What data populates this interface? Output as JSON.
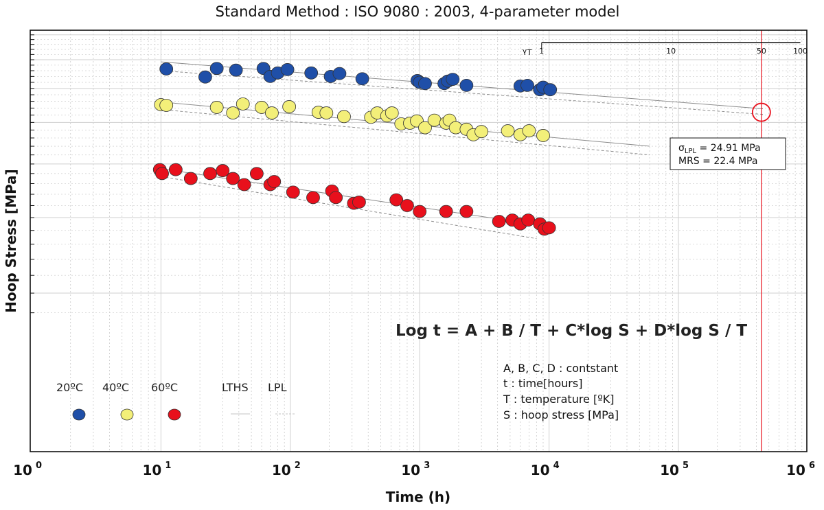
{
  "chart_data": {
    "type": "scatter",
    "title": "Standard Method : ISO 9080 :  2003, 4-parameter model",
    "xlabel": "Time (h)",
    "ylabel": "Hoop Stress [MPa]",
    "x_scale": "log",
    "xlim": [
      1,
      1000000
    ],
    "x_ticks": [
      {
        "value": 1,
        "base": "10",
        "exp": "0"
      },
      {
        "value": 10,
        "base": "10",
        "exp": "1"
      },
      {
        "value": 100,
        "base": "10",
        "exp": "2"
      },
      {
        "value": 1000,
        "base": "10",
        "exp": "3"
      },
      {
        "value": 10000,
        "base": "10",
        "exp": "4"
      },
      {
        "value": 100000,
        "base": "10",
        "exp": "5"
      },
      {
        "value": 1000000,
        "base": "10",
        "exp": "6"
      }
    ],
    "y_scale": "log",
    "ylim": [
      9,
      40
    ],
    "grid": true,
    "series": [
      {
        "name": "20°C",
        "color": "#1f4fa8",
        "x": [
          11,
          22,
          27,
          38,
          62,
          70,
          80,
          95,
          145,
          205,
          240,
          360,
          960,
          1000,
          1100,
          1550,
          1650,
          1800,
          2300,
          6000,
          6800,
          8500,
          9000,
          10200
        ],
        "y": [
          33.3,
          31.9,
          33.4,
          33.1,
          33.4,
          32.0,
          32.6,
          33.2,
          32.6,
          32.0,
          32.5,
          31.6,
          31.3,
          31.0,
          30.8,
          30.8,
          31.2,
          31.5,
          30.5,
          30.4,
          30.5,
          29.8,
          30.2,
          29.8
        ]
      },
      {
        "name": "40°C",
        "color": "#f3ef79",
        "x": [
          10,
          11,
          27,
          36,
          43,
          60,
          72,
          98,
          165,
          190,
          260,
          420,
          470,
          560,
          610,
          720,
          840,
          950,
          1100,
          1300,
          1600,
          1700,
          1900,
          2300,
          2600,
          3000,
          4800,
          6000,
          7000,
          9000
        ],
        "y": [
          27.5,
          27.4,
          27.1,
          26.3,
          27.6,
          27.1,
          26.3,
          27.2,
          26.4,
          26.3,
          25.8,
          25.7,
          26.3,
          25.9,
          26.3,
          24.8,
          24.9,
          25.2,
          24.3,
          25.3,
          24.9,
          25.3,
          24.3,
          24.1,
          23.4,
          23.8,
          23.9,
          23.4,
          23.9,
          23.3
        ]
      },
      {
        "name": "60°C",
        "color": "#e8101c",
        "x": [
          9.8,
          10.2,
          13,
          17,
          24,
          30,
          36,
          44,
          55,
          70,
          75,
          105,
          150,
          210,
          225,
          310,
          340,
          660,
          800,
          1000,
          1600,
          2300,
          4100,
          5200,
          6000,
          6900,
          8500,
          9200,
          10000
        ],
        "y": [
          19.4,
          19.0,
          19.4,
          18.5,
          19.0,
          19.3,
          18.5,
          17.9,
          19.0,
          17.9,
          18.2,
          17.2,
          16.7,
          17.3,
          16.7,
          16.2,
          16.3,
          16.5,
          16.0,
          15.5,
          15.5,
          15.5,
          14.7,
          14.8,
          14.5,
          14.8,
          14.5,
          14.1,
          14.2
        ]
      }
    ],
    "lines": [
      {
        "name": "LTHS",
        "series": "20°C",
        "x": [
          10,
          450000
        ],
        "y": [
          34.6,
          26.9
        ],
        "style": "solid",
        "color": "#8c8c8c"
      },
      {
        "name": "LPL",
        "series": "20°C",
        "x": [
          10,
          450000
        ],
        "y": [
          33.0,
          26.1
        ],
        "style": "dashed",
        "color": "#8c8c8c"
      },
      {
        "name": "LTHS",
        "series": "40°C",
        "x": [
          10,
          60000
        ],
        "y": [
          27.9,
          22.0
        ],
        "style": "solid",
        "color": "#8c8c8c"
      },
      {
        "name": "LPL",
        "series": "40°C",
        "x": [
          10,
          60000
        ],
        "y": [
          26.8,
          21.0
        ],
        "style": "dashed",
        "color": "#8c8c8c"
      },
      {
        "name": "LTHS",
        "series": "60°C",
        "x": [
          10,
          10000
        ],
        "y": [
          19.5,
          14.3
        ],
        "style": "solid",
        "color": "#8c8c8c"
      },
      {
        "name": "LPL",
        "series": "60°C",
        "x": [
          10,
          8000
        ],
        "y": [
          18.7,
          13.4
        ],
        "style": "dashed",
        "color": "#8c8c8c"
      }
    ],
    "reference_line": {
      "x": 438000,
      "color": "#e8101c"
    },
    "highlight_point": {
      "x": 438000,
      "y": 26.4,
      "color": "#e8101c"
    },
    "annotation_box": {
      "sigma_prefix": "σ",
      "sigma_sub": "LPL",
      "sigma_value": " = 24.91 MPa",
      "mrs_text": "MRS = 22.4 MPa"
    },
    "gamma_scale": {
      "label_main": "γ",
      "label_sub": "T",
      "ticks": [
        {
          "label": "1",
          "x": 8760
        },
        {
          "label": "10",
          "x": 87600
        },
        {
          "label": "50",
          "x": 438000
        },
        {
          "label": "100",
          "x": 876000
        }
      ]
    },
    "equation": "Log t = A + B / T + C*log S + D*log S  / T",
    "definitions": [
      "A, B, C, D : contstant",
      "t : time[hours]",
      "T : temperature [ºK]",
      "S : hoop stress [MPa]"
    ],
    "legend": {
      "items": [
        {
          "label": "20ºC",
          "color": "#1f4fa8",
          "kind": "marker"
        },
        {
          "label": "40ºC",
          "color": "#f3ef79",
          "kind": "marker"
        },
        {
          "label": "60ºC",
          "color": "#e8101c",
          "kind": "marker"
        },
        {
          "label": "LTHS",
          "kind": "solid"
        },
        {
          "label": "LPL",
          "kind": "dashed"
        }
      ]
    }
  }
}
